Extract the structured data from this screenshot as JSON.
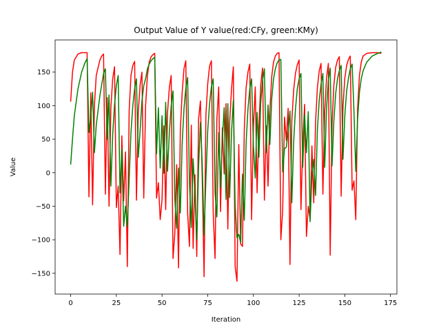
{
  "chart_data": {
    "type": "line",
    "title": "Output Value of Y value(red:CFy, green:KMy)",
    "xlabel": "Iteration",
    "ylabel": "Value",
    "xlim": [
      -8.5,
      178.5
    ],
    "ylim": [
      -181,
      198
    ],
    "xticks": [
      0,
      25,
      50,
      75,
      100,
      125,
      150,
      175
    ],
    "yticks": [
      -150,
      -100,
      -50,
      0,
      50,
      100,
      150
    ],
    "grid": false,
    "legend": "none",
    "series": [
      {
        "color": "#ff0000",
        "keyframes": [
          [
            0,
            106
          ],
          [
            1,
            150
          ],
          [
            2,
            168
          ],
          [
            4,
            177
          ],
          [
            6,
            179
          ],
          [
            9,
            179
          ],
          [
            10,
            -36
          ],
          [
            11,
            119
          ],
          [
            12,
            -48
          ],
          [
            13,
            100
          ],
          [
            14,
            145
          ],
          [
            16,
            168
          ],
          [
            17,
            174
          ],
          [
            18,
            177
          ],
          [
            19,
            -32
          ],
          [
            20,
            112
          ],
          [
            21,
            -50
          ],
          [
            22,
            97
          ],
          [
            23,
            140
          ],
          [
            24,
            158
          ],
          [
            25,
            -52
          ],
          [
            26,
            -20
          ],
          [
            27,
            -122
          ],
          [
            28,
            55
          ],
          [
            29,
            -42
          ],
          [
            30,
            31
          ],
          [
            31,
            -140
          ],
          [
            32,
            92
          ],
          [
            33,
            145
          ],
          [
            34,
            160
          ],
          [
            35,
            166
          ],
          [
            36,
            -41
          ],
          [
            37,
            90
          ],
          [
            38,
            131
          ],
          [
            39,
            150
          ],
          [
            40,
            -38
          ],
          [
            41,
            100
          ],
          [
            42,
            145
          ],
          [
            43,
            165
          ],
          [
            44,
            173
          ],
          [
            45,
            176
          ],
          [
            46,
            178
          ],
          [
            47,
            -38
          ],
          [
            48,
            -15
          ],
          [
            49,
            -70
          ],
          [
            50,
            -40
          ],
          [
            51,
            70
          ],
          [
            52,
            -55
          ],
          [
            53,
            90
          ],
          [
            54,
            127
          ],
          [
            55,
            145
          ],
          [
            56,
            -128
          ],
          [
            57,
            -90
          ],
          [
            58,
            12
          ],
          [
            59,
            -142
          ],
          [
            60,
            63
          ],
          [
            61,
            119
          ],
          [
            62,
            155
          ],
          [
            63,
            167
          ],
          [
            64,
            -60
          ],
          [
            65,
            -110
          ],
          [
            66,
            71
          ],
          [
            67,
            -113
          ],
          [
            68,
            -3
          ],
          [
            69,
            -125
          ],
          [
            70,
            80
          ],
          [
            71,
            107
          ],
          [
            72,
            -10
          ],
          [
            73,
            -155
          ],
          [
            74,
            86
          ],
          [
            75,
            133
          ],
          [
            76,
            159
          ],
          [
            77,
            167
          ],
          [
            78,
            -60
          ],
          [
            79,
            -128
          ],
          [
            80,
            80
          ],
          [
            81,
            128
          ],
          [
            82,
            -58
          ],
          [
            83,
            67
          ],
          [
            84,
            -2
          ],
          [
            85,
            103
          ],
          [
            86,
            -84
          ],
          [
            87,
            75
          ],
          [
            88,
            124
          ],
          [
            89,
            158
          ],
          [
            90,
            -140
          ],
          [
            91,
            -162
          ],
          [
            92,
            42
          ],
          [
            93,
            -106
          ],
          [
            94,
            -110
          ],
          [
            95,
            65
          ],
          [
            96,
            127
          ],
          [
            97,
            150
          ],
          [
            98,
            162
          ],
          [
            99,
            -70
          ],
          [
            100,
            69
          ],
          [
            101,
            128
          ],
          [
            102,
            -30
          ],
          [
            103,
            70
          ],
          [
            104,
            131
          ],
          [
            105,
            156
          ],
          [
            106,
            -41
          ],
          [
            107,
            70
          ],
          [
            108,
            -20
          ],
          [
            109,
            93
          ],
          [
            110,
            143
          ],
          [
            111,
            165
          ],
          [
            112,
            174
          ],
          [
            113,
            178
          ],
          [
            114,
            179
          ],
          [
            115,
            -100
          ],
          [
            116,
            -56
          ],
          [
            117,
            83
          ],
          [
            118,
            48
          ],
          [
            119,
            96
          ],
          [
            120,
            -137
          ],
          [
            121,
            77
          ],
          [
            122,
            123
          ],
          [
            123,
            148
          ],
          [
            124,
            161
          ],
          [
            125,
            168
          ],
          [
            126,
            -55
          ],
          [
            127,
            42
          ],
          [
            128,
            102
          ],
          [
            129,
            -95
          ],
          [
            130,
            -50
          ],
          [
            131,
            -69
          ],
          [
            132,
            40
          ],
          [
            133,
            -45
          ],
          [
            134,
            76
          ],
          [
            135,
            127
          ],
          [
            136,
            152
          ],
          [
            137,
            163
          ],
          [
            138,
            -32
          ],
          [
            139,
            91
          ],
          [
            140,
            141
          ],
          [
            141,
            163
          ],
          [
            142,
            -123
          ],
          [
            143,
            72
          ],
          [
            144,
            130
          ],
          [
            145,
            157
          ],
          [
            146,
            168
          ],
          [
            147,
            173
          ],
          [
            148,
            -35
          ],
          [
            149,
            99
          ],
          [
            150,
            141
          ],
          [
            151,
            160
          ],
          [
            152,
            169
          ],
          [
            153,
            174
          ],
          [
            154,
            -26
          ],
          [
            155,
            -12
          ],
          [
            156,
            -70
          ],
          [
            157,
            95
          ],
          [
            158,
            145
          ],
          [
            159,
            165
          ],
          [
            160,
            174
          ],
          [
            162,
            178
          ],
          [
            165,
            179
          ],
          [
            168,
            179
          ],
          [
            170,
            178
          ]
        ]
      },
      {
        "color": "#008000",
        "keyframes": [
          [
            0,
            12
          ],
          [
            1,
            50
          ],
          [
            2,
            85
          ],
          [
            4,
            125
          ],
          [
            6,
            150
          ],
          [
            8,
            165
          ],
          [
            9,
            170
          ],
          [
            10,
            60
          ],
          [
            11,
            83
          ],
          [
            12,
            120
          ],
          [
            13,
            30
          ],
          [
            14,
            71
          ],
          [
            16,
            115
          ],
          [
            18,
            148
          ],
          [
            19,
            155
          ],
          [
            20,
            50
          ],
          [
            21,
            116
          ],
          [
            22,
            -20
          ],
          [
            23,
            57
          ],
          [
            24,
            101
          ],
          [
            25,
            130
          ],
          [
            26,
            145
          ],
          [
            27,
            -30
          ],
          [
            28,
            35
          ],
          [
            29,
            -80
          ],
          [
            30,
            -50
          ],
          [
            31,
            -80
          ],
          [
            32,
            -10
          ],
          [
            33,
            60
          ],
          [
            34,
            100
          ],
          [
            35,
            125
          ],
          [
            36,
            140
          ],
          [
            37,
            23
          ],
          [
            38,
            63
          ],
          [
            39,
            107
          ],
          [
            40,
            130
          ],
          [
            41,
            140
          ],
          [
            42,
            155
          ],
          [
            43,
            162
          ],
          [
            44,
            167
          ],
          [
            45,
            170
          ],
          [
            46,
            172
          ],
          [
            47,
            28
          ],
          [
            48,
            97
          ],
          [
            49,
            7
          ],
          [
            50,
            85
          ],
          [
            51,
            -1
          ],
          [
            52,
            105
          ],
          [
            53,
            2
          ],
          [
            54,
            60
          ],
          [
            55,
            100
          ],
          [
            56,
            122
          ],
          [
            57,
            -40
          ],
          [
            58,
            -83
          ],
          [
            59,
            7
          ],
          [
            60,
            -60
          ],
          [
            61,
            43
          ],
          [
            62,
            95
          ],
          [
            63,
            126
          ],
          [
            64,
            142
          ],
          [
            65,
            -15
          ],
          [
            66,
            -82
          ],
          [
            67,
            21
          ],
          [
            68,
            -32
          ],
          [
            69,
            -100
          ],
          [
            70,
            9
          ],
          [
            71,
            75
          ],
          [
            72,
            12
          ],
          [
            73,
            -93
          ],
          [
            74,
            -10
          ],
          [
            75,
            63
          ],
          [
            76,
            103
          ],
          [
            77,
            128
          ],
          [
            78,
            140
          ],
          [
            79,
            -30
          ],
          [
            80,
            -66
          ],
          [
            81,
            60
          ],
          [
            82,
            -22
          ],
          [
            83,
            50
          ],
          [
            84,
            97
          ],
          [
            85,
            -40
          ],
          [
            86,
            103
          ],
          [
            87,
            -37
          ],
          [
            88,
            60
          ],
          [
            89,
            108
          ],
          [
            90,
            -50
          ],
          [
            91,
            -97
          ],
          [
            92,
            -92
          ],
          [
            93,
            -104
          ],
          [
            94,
            -2
          ],
          [
            95,
            -71
          ],
          [
            96,
            45
          ],
          [
            97,
            95
          ],
          [
            98,
            125
          ],
          [
            99,
            140
          ],
          [
            100,
            40
          ],
          [
            101,
            -8
          ],
          [
            102,
            90
          ],
          [
            103,
            23
          ],
          [
            104,
            104
          ],
          [
            105,
            138
          ],
          [
            106,
            155
          ],
          [
            107,
            30
          ],
          [
            108,
            101
          ],
          [
            109,
            42
          ],
          [
            110,
            110
          ],
          [
            111,
            140
          ],
          [
            112,
            155
          ],
          [
            113,
            164
          ],
          [
            114,
            168
          ],
          [
            115,
            169
          ],
          [
            116,
            1
          ],
          [
            117,
            36
          ],
          [
            118,
            38
          ],
          [
            119,
            62
          ],
          [
            120,
            92
          ],
          [
            121,
            -45
          ],
          [
            122,
            45
          ],
          [
            123,
            95
          ],
          [
            124,
            125
          ],
          [
            125,
            140
          ],
          [
            126,
            148
          ],
          [
            127,
            8
          ],
          [
            128,
            86
          ],
          [
            129,
            30
          ],
          [
            130,
            91
          ],
          [
            131,
            -73
          ],
          [
            132,
            -5
          ],
          [
            133,
            20
          ],
          [
            134,
            -34
          ],
          [
            135,
            64
          ],
          [
            136,
            108
          ],
          [
            137,
            132
          ],
          [
            138,
            148
          ],
          [
            139,
            8
          ],
          [
            140,
            96
          ],
          [
            141,
            138
          ],
          [
            142,
            156
          ],
          [
            143,
            10
          ],
          [
            144,
            77
          ],
          [
            145,
            118
          ],
          [
            146,
            140
          ],
          [
            147,
            152
          ],
          [
            148,
            160
          ],
          [
            149,
            20
          ],
          [
            150,
            85
          ],
          [
            151,
            122
          ],
          [
            152,
            141
          ],
          [
            153,
            155
          ],
          [
            154,
            162
          ],
          [
            155,
            92
          ],
          [
            156,
            2
          ],
          [
            157,
            80
          ],
          [
            158,
            120
          ],
          [
            159,
            140
          ],
          [
            160,
            152
          ],
          [
            162,
            165
          ],
          [
            165,
            174
          ],
          [
            168,
            178
          ],
          [
            170,
            180
          ]
        ]
      }
    ]
  }
}
